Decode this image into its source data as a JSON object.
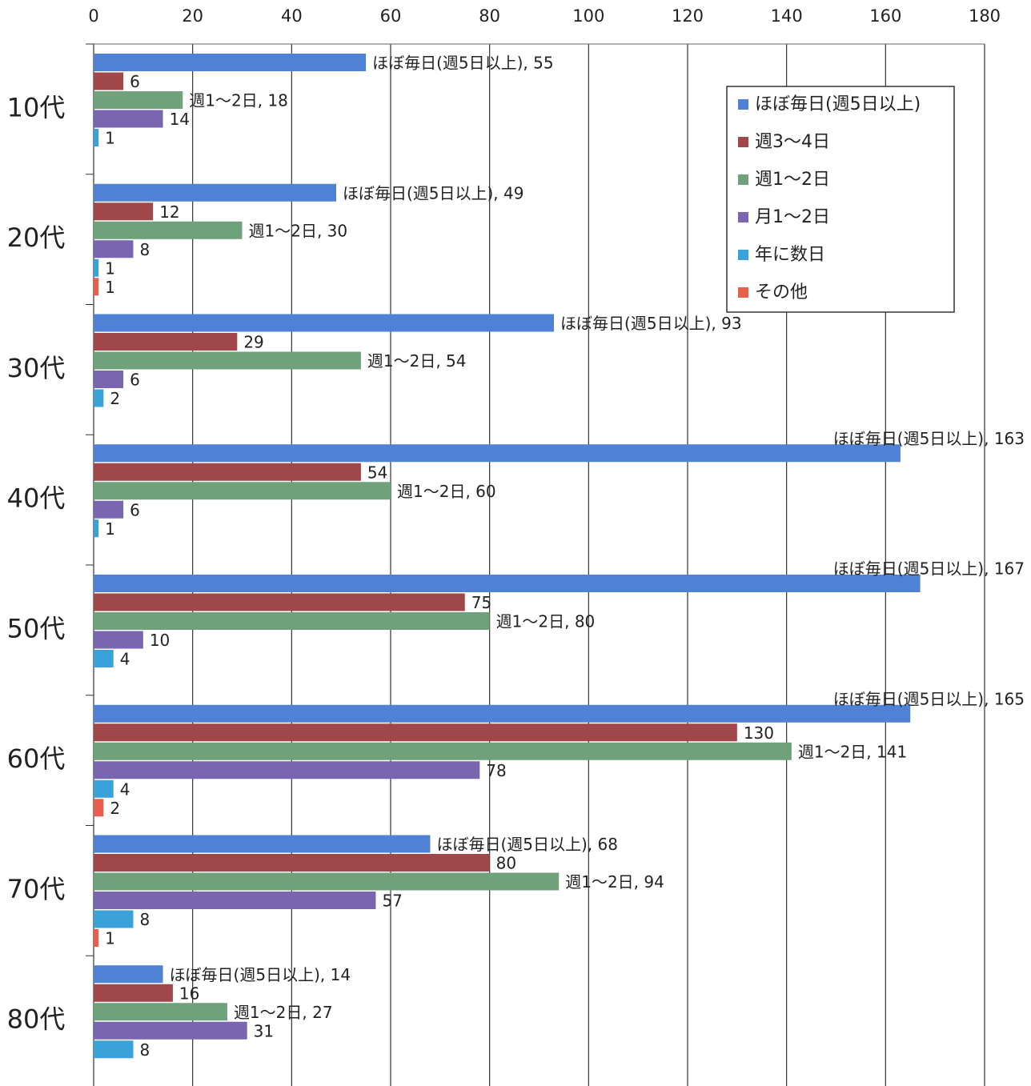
{
  "chart_data": {
    "type": "bar",
    "orientation": "horizontal",
    "categories": [
      "10代",
      "20代",
      "30代",
      "40代",
      "50代",
      "60代",
      "70代",
      "80代"
    ],
    "xlim": [
      0,
      180
    ],
    "xticks": [
      0,
      20,
      40,
      60,
      80,
      100,
      120,
      140,
      160,
      180
    ],
    "grid": true,
    "legend": "upper right",
    "series": [
      {
        "name": "ほぼ毎日(週5日以上)",
        "color": "#4f81d4",
        "values": [
          55,
          49,
          93,
          163,
          167,
          165,
          68,
          14
        ],
        "value_labels": [
          "ほぼ毎日(週5日以上), 55",
          "ほぼ毎日(週5日以上), 49",
          "ほぼ毎日(週5日以上), 93",
          "ほぼ毎日(週5日以上), 163",
          "ほぼ毎日(週5日以上), 167",
          "ほぼ毎日(週5日以上), 165",
          "ほぼ毎日(週5日以上), 68",
          "ほぼ毎日(週5日以上), 14"
        ]
      },
      {
        "name": "週3〜4日",
        "color": "#a0474a",
        "values": [
          6,
          12,
          29,
          54,
          75,
          130,
          80,
          16
        ]
      },
      {
        "name": "週1〜2日",
        "color": "#6fa27a",
        "values": [
          18,
          30,
          54,
          60,
          80,
          141,
          94,
          27
        ],
        "value_labels": [
          "週1〜2日, 18",
          "週1〜2日, 30",
          "週1〜2日, 54",
          "週1〜2日, 60",
          "週1〜2日, 80",
          "週1〜2日, 141",
          "週1〜2日, 94",
          "週1〜2日, 27"
        ]
      },
      {
        "name": "月1〜2日",
        "color": "#7a66b0",
        "values": [
          14,
          8,
          6,
          6,
          10,
          78,
          57,
          31
        ]
      },
      {
        "name": "年に数日",
        "color": "#3aa2d8",
        "values": [
          1,
          1,
          2,
          1,
          4,
          4,
          8,
          8
        ]
      },
      {
        "name": "その他",
        "color": "#e8604c",
        "values": [
          null,
          1,
          null,
          null,
          null,
          2,
          1,
          null
        ]
      }
    ]
  }
}
